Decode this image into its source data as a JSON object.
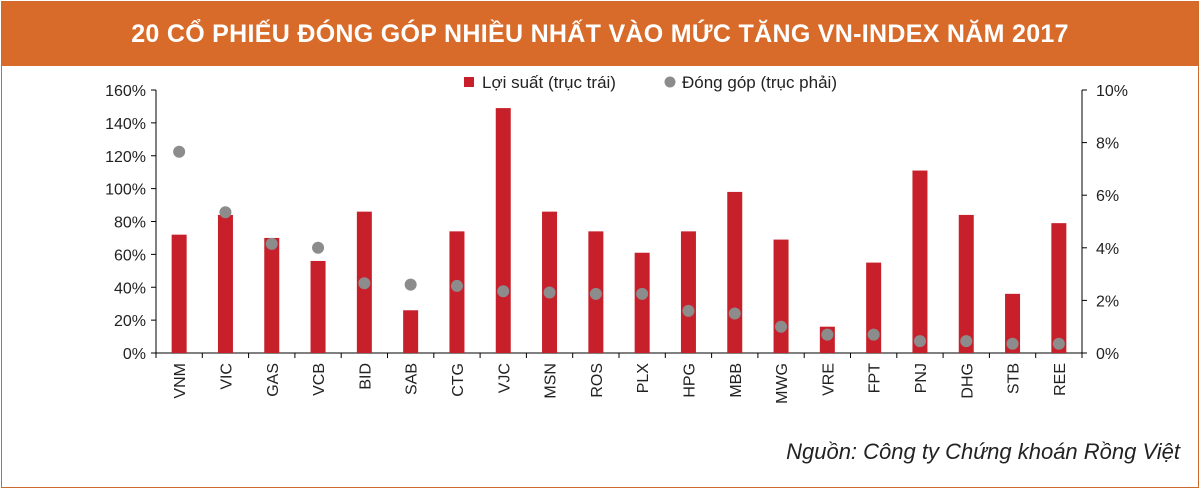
{
  "header": {
    "title": "20 CỔ PHIẾU ĐÓNG GÓP NHIỀU NHẤT VÀO MỨC TĂNG VN-INDEX NĂM 2017"
  },
  "source": "Nguồn:  Công ty Chứng khoán Rồng Việt",
  "colors": {
    "title_bg": "#d86b29",
    "bar": "#c8202b",
    "dot": "#8c8c8c"
  },
  "chart_data": {
    "type": "bar",
    "categories": [
      "VNM",
      "VIC",
      "GAS",
      "VCB",
      "BID",
      "SAB",
      "CTG",
      "VJC",
      "MSN",
      "ROS",
      "PLX",
      "HPG",
      "MBB",
      "MWG",
      "VRE",
      "FPT",
      "PNJ",
      "DHG",
      "STB",
      "REE"
    ],
    "series": [
      {
        "name": "Lợi suất (trục trái)",
        "type": "bar",
        "axis": "left",
        "values": [
          72,
          84,
          70,
          56,
          86,
          26,
          74,
          149,
          86,
          74,
          61,
          74,
          98,
          69,
          16,
          55,
          111,
          84,
          36,
          79
        ]
      },
      {
        "name": "Đóng góp (trục phải)",
        "type": "scatter",
        "axis": "right",
        "values": [
          7.65,
          5.35,
          4.15,
          4.0,
          2.65,
          2.6,
          2.55,
          2.35,
          2.3,
          2.25,
          2.25,
          1.6,
          1.5,
          1.0,
          0.7,
          0.7,
          0.45,
          0.45,
          0.35,
          0.35
        ]
      }
    ],
    "y_left": {
      "min": 0,
      "max": 160,
      "ticks": [
        "0%",
        "20%",
        "40%",
        "60%",
        "80%",
        "100%",
        "120%",
        "140%",
        "160%"
      ]
    },
    "y_right": {
      "min": 0,
      "max": 10,
      "ticks": [
        "0%",
        "2%",
        "4%",
        "6%",
        "8%",
        "10%"
      ]
    },
    "legend": [
      "Lợi suất (trục trái)",
      "Đóng góp (trục phải)"
    ],
    "legend_position": "top-center",
    "grid": false
  }
}
